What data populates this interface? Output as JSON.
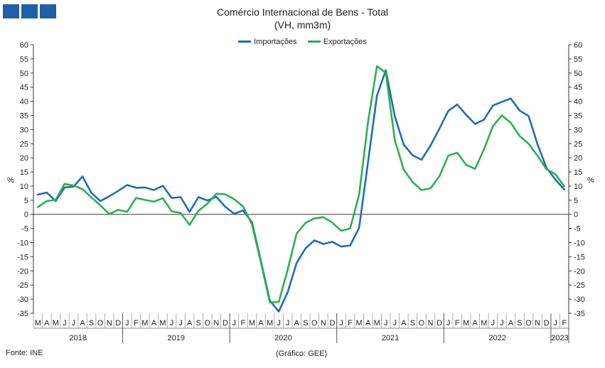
{
  "chart_data": {
    "type": "line",
    "title": "Comércio Internacional de Bens - Total",
    "subtitle": "(VH, mm3m)",
    "ylabel_left": "%",
    "ylabel_right": "%",
    "ylim": [
      -35,
      60
    ],
    "ystep": 5,
    "grid": false,
    "legend_position": "top-center",
    "x": [
      "M",
      "A",
      "M",
      "J",
      "J",
      "A",
      "S",
      "O",
      "N",
      "D",
      "J",
      "F",
      "M",
      "A",
      "M",
      "J",
      "J",
      "A",
      "S",
      "O",
      "N",
      "D",
      "J",
      "F",
      "M",
      "A",
      "M",
      "J",
      "J",
      "A",
      "S",
      "O",
      "N",
      "D",
      "J",
      "F",
      "M",
      "A",
      "M",
      "J",
      "J",
      "A",
      "S",
      "O",
      "N",
      "D",
      "J",
      "F",
      "M",
      "A",
      "M",
      "J",
      "J",
      "A",
      "S",
      "O",
      "N",
      "D",
      "J",
      "F"
    ],
    "years": [
      {
        "label": "2018",
        "start": 0,
        "count": 10
      },
      {
        "label": "2019",
        "start": 10,
        "count": 12
      },
      {
        "label": "2020",
        "start": 22,
        "count": 12
      },
      {
        "label": "2021",
        "start": 34,
        "count": 12
      },
      {
        "label": "2022",
        "start": 46,
        "count": 12
      },
      {
        "label": "2023",
        "start": 58,
        "count": 2
      }
    ],
    "series": [
      {
        "name": "Importações",
        "color": "#1f6db5",
        "values": [
          7,
          7.7,
          4.7,
          9.5,
          9.8,
          13.4,
          7.6,
          4.7,
          6.4,
          8.3,
          10.4,
          9.4,
          9.5,
          8.6,
          10.1,
          5.8,
          6.1,
          0.9,
          6.1,
          4.9,
          6.2,
          2.7,
          0.2,
          1.4,
          -2.8,
          -16.5,
          -30.5,
          -34.4,
          -27.5,
          -17.2,
          -12,
          -9.2,
          -10.5,
          -9.7,
          -11.4,
          -11,
          -4.8,
          18.3,
          42,
          51,
          34.7,
          24.7,
          20.9,
          19.3,
          24.3,
          30.3,
          36.6,
          38.9,
          35.2,
          32,
          33.5,
          38.5,
          39.8,
          41,
          36.7,
          34.8,
          24.8,
          16.5,
          12.3,
          8.8
        ]
      },
      {
        "name": "Exportações",
        "color": "#2db04f",
        "values": [
          2.6,
          4.7,
          5.1,
          10.8,
          10.2,
          8.9,
          6,
          3.2,
          0.1,
          1.6,
          0.9,
          5.8,
          5.1,
          4.5,
          5.7,
          1.1,
          0.5,
          -3.7,
          1.3,
          3.8,
          7.3,
          7.1,
          5.4,
          2.8,
          -3.6,
          -17,
          -31.2,
          -31,
          -19.5,
          -6.8,
          -3,
          -1.4,
          -1,
          -2.9,
          -5.8,
          -5,
          6.9,
          32.5,
          52.4,
          50.1,
          26.3,
          15.9,
          11.4,
          8.6,
          9.2,
          13.4,
          20.8,
          21.8,
          17.5,
          16.1,
          23,
          31.2,
          35,
          32.4,
          27.7,
          25,
          20.7,
          16,
          14.2,
          9.9
        ]
      }
    ],
    "legend": [
      "Importações",
      "Exportações"
    ],
    "source": "Fonte: INE",
    "credit": "(Gráfico: GEE)"
  }
}
